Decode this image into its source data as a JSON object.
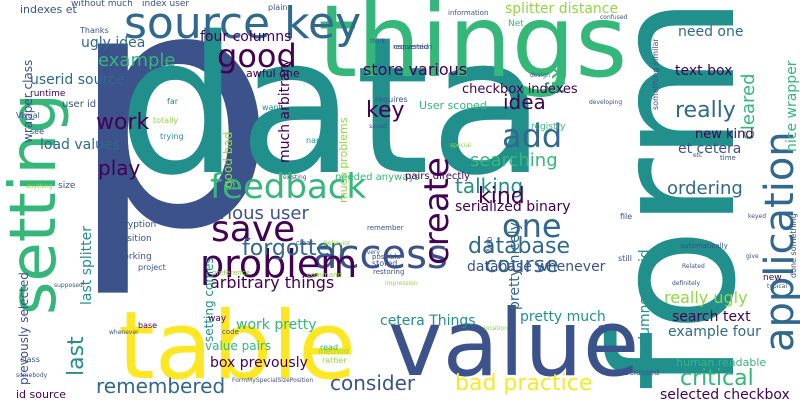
{
  "palette": {
    "purple": "#440154",
    "indigo": "#3b528b",
    "blue": "#31688e",
    "teal": "#21908c",
    "green": "#35b779",
    "lime": "#90d743",
    "yellow": "#fde725"
  },
  "words": [
    {
      "text": "p",
      "color": "#3b528b"
    },
    {
      "text": "data",
      "color": "#21908c"
    },
    {
      "text": "form",
      "color": "#21908c"
    },
    {
      "text": "things",
      "color": "#35b779"
    },
    {
      "text": "table",
      "color": "#fde725"
    },
    {
      "text": "value",
      "color": "#3b528b"
    },
    {
      "text": "setting",
      "color": "#35b779"
    },
    {
      "text": "source key",
      "color": "#31688e"
    },
    {
      "text": "access",
      "color": "#3b528b"
    },
    {
      "text": "application",
      "color": "#31688e"
    },
    {
      "text": "problem",
      "color": "#440154"
    },
    {
      "text": "save",
      "color": "#440154"
    },
    {
      "text": "feedback",
      "color": "#35b779"
    },
    {
      "text": "create",
      "color": "#440154"
    },
    {
      "text": "one",
      "color": "#31688e"
    },
    {
      "text": "good",
      "color": "#440154"
    },
    {
      "text": "add",
      "color": "#31688e"
    },
    {
      "text": "database",
      "color": "#31688e"
    },
    {
      "text": "forgotten",
      "color": "#31688e"
    },
    {
      "text": "last",
      "color": "#21908c"
    },
    {
      "text": "course",
      "color": "#31688e"
    },
    {
      "text": "consider",
      "color": "#3b528b"
    },
    {
      "text": "remembered",
      "color": "#31688e"
    },
    {
      "text": "bad practice",
      "color": "#fde725"
    },
    {
      "text": "critical",
      "color": "#35b779"
    },
    {
      "text": "really",
      "color": "#31688e"
    },
    {
      "text": "really ugly",
      "color": "#90d743"
    },
    {
      "text": "example",
      "color": "#35b779"
    },
    {
      "text": "work",
      "color": "#440154"
    },
    {
      "text": "play",
      "color": "#440154"
    },
    {
      "text": "key",
      "color": "#440154"
    },
    {
      "text": "idea",
      "color": "#440154"
    },
    {
      "text": "fix",
      "color": "#35b779"
    },
    {
      "text": "talking",
      "color": "#21908c"
    },
    {
      "text": "searching",
      "color": "#35b779"
    },
    {
      "text": "kind",
      "color": "#440154"
    },
    {
      "text": "ordering",
      "color": "#31688e"
    },
    {
      "text": "cleared",
      "color": "#35b779"
    },
    {
      "text": "store various",
      "color": "#440154"
    },
    {
      "text": "various user",
      "color": "#3b528b"
    },
    {
      "text": "arbitrary things",
      "color": "#440154"
    },
    {
      "text": "work pretty",
      "color": "#35b779"
    },
    {
      "text": "new kind",
      "color": "#440154"
    },
    {
      "text": "et cetera",
      "color": "#3b528b"
    },
    {
      "text": "text box",
      "color": "#440154"
    },
    {
      "text": "need one",
      "color": "#31688e"
    },
    {
      "text": "nice wrapper",
      "color": "#35b779"
    },
    {
      "text": "pretty much",
      "color": "#21908c"
    },
    {
      "text": "search text",
      "color": "#440154"
    },
    {
      "text": "example four",
      "color": "#31688e"
    },
    {
      "text": "selected checkbox",
      "color": "#440154"
    },
    {
      "text": "splitter distance",
      "color": "#90d743"
    },
    {
      "text": "four columns",
      "color": "#440154"
    },
    {
      "text": "ugly idea",
      "color": "#31688e"
    },
    {
      "text": "userid source",
      "color": "#31688e"
    },
    {
      "text": "load values",
      "color": "#31688e"
    },
    {
      "text": "checkbox indexes",
      "color": "#440154"
    },
    {
      "text": "serialized binary",
      "color": "#440154"
    },
    {
      "text": "pretty nicely",
      "color": "#31688e"
    },
    {
      "text": "database whenever",
      "color": "#3b528b"
    },
    {
      "text": "cetera Things",
      "color": "#21908c"
    },
    {
      "text": "box prevously",
      "color": "#440154"
    },
    {
      "text": "value pairs",
      "color": "#35b779"
    },
    {
      "text": "last splitter",
      "color": "#21908c"
    },
    {
      "text": "prevously selected",
      "color": "#3b528b"
    },
    {
      "text": "good bad",
      "color": "#90d743"
    },
    {
      "text": "much arbitrary",
      "color": "#440154"
    },
    {
      "text": "setting comes",
      "color": "#21908c"
    },
    {
      "text": "columns userid",
      "color": "#21908c"
    },
    {
      "text": "much problems",
      "color": "#90d743"
    },
    {
      "text": "wrapper class",
      "color": "#3b528b"
    },
    {
      "text": "id source",
      "color": "#440154"
    },
    {
      "text": "indexes et",
      "color": "#3b528b"
    },
    {
      "text": "without much",
      "color": "#3b528b"
    },
    {
      "text": "index user",
      "color": "#3b528b"
    },
    {
      "text": "awful one",
      "color": "#440154"
    },
    {
      "text": "User scoped",
      "color": "#35b779"
    },
    {
      "text": "needed anyways",
      "color": "#35b779"
    },
    {
      "text": "pairs directly",
      "color": "#440154"
    },
    {
      "text": "human readable",
      "color": "#35b779"
    },
    {
      "text": "user id",
      "color": "#3b528b"
    },
    {
      "text": "runtime",
      "color": "#440154"
    },
    {
      "text": "size",
      "color": "#3b528b"
    },
    {
      "text": "encryption",
      "color": "#3b528b"
    },
    {
      "text": "position",
      "color": "#3b528b"
    },
    {
      "text": "working",
      "color": "#3b528b"
    },
    {
      "text": "project",
      "color": "#3b528b"
    },
    {
      "text": "plain",
      "color": "#3b528b"
    },
    {
      "text": "Thanks",
      "color": "#3b528b"
    },
    {
      "text": "Net",
      "color": "#35b779"
    },
    {
      "text": "registry",
      "color": "#35b779"
    },
    {
      "text": "requires",
      "color": "#3b528b"
    },
    {
      "text": "want",
      "color": "#21908c"
    },
    {
      "text": "far",
      "color": "#21908c"
    },
    {
      "text": "totally",
      "color": "#90d743"
    },
    {
      "text": "trying",
      "color": "#21908c"
    },
    {
      "text": "name",
      "color": "#21908c"
    },
    {
      "text": "way",
      "color": "#440154"
    },
    {
      "text": "base",
      "color": "#440154"
    },
    {
      "text": "stored",
      "color": "#3b528b"
    },
    {
      "text": "restoring",
      "color": "#3b528b"
    },
    {
      "text": "possible",
      "color": "#3b528b"
    },
    {
      "text": "remember",
      "color": "#3b528b"
    },
    {
      "text": "Config",
      "color": "#3b528b"
    },
    {
      "text": "automatically",
      "color": "#3b528b"
    },
    {
      "text": "read",
      "color": "#35b779"
    },
    {
      "text": "method",
      "color": "#90d743"
    },
    {
      "text": "rather",
      "color": "#90d743"
    },
    {
      "text": "subclassed",
      "color": "#3b528b"
    },
    {
      "text": "new",
      "color": "#440154"
    },
    {
      "text": "still",
      "color": "#3b528b"
    },
    {
      "text": "file",
      "color": "#3b528b"
    },
    {
      "text": "see",
      "color": "#3b528b"
    },
    {
      "text": "Visual",
      "color": "#3b528b"
    },
    {
      "text": "class",
      "color": "#3b528b"
    },
    {
      "text": "something similar",
      "color": "#3b528b"
    },
    {
      "text": "done something",
      "color": "#3b528b"
    },
    {
      "text": "information",
      "color": "#3b528b"
    },
    {
      "text": "conversion",
      "color": "#3b528b"
    },
    {
      "text": "requested",
      "color": "#3b528b"
    },
    {
      "text": "design",
      "color": "#3b528b"
    },
    {
      "text": "developing",
      "color": "#3b528b"
    },
    {
      "text": "FormMySpecialSizePosition",
      "color": "#3b528b"
    },
    {
      "text": "preference",
      "color": "#90d743"
    },
    {
      "text": "command",
      "color": "#90d743"
    },
    {
      "text": "behavior",
      "color": "#90d743"
    },
    {
      "text": "existing",
      "color": "#3b528b"
    },
    {
      "text": "special",
      "color": "#90d743"
    },
    {
      "text": "confused",
      "color": "#3b528b"
    },
    {
      "text": "think",
      "color": "#3b528b"
    },
    {
      "text": "saved",
      "color": "#3b528b"
    },
    {
      "text": "keyed",
      "color": "#3b528b"
    },
    {
      "text": "time",
      "color": "#3b528b"
    },
    {
      "text": "etc",
      "color": "#3b528b"
    },
    {
      "text": "clear",
      "color": "#3b528b"
    },
    {
      "text": "code",
      "color": "#3b528b"
    },
    {
      "text": "whenever",
      "color": "#3b528b"
    },
    {
      "text": "supposed",
      "color": "#3b528b"
    },
    {
      "text": "anything",
      "color": "#90d743"
    },
    {
      "text": "somebody",
      "color": "#3b528b"
    },
    {
      "text": "location",
      "color": "#90d743"
    },
    {
      "text": "typical",
      "color": "#3b528b"
    },
    {
      "text": "give",
      "color": "#3b528b"
    },
    {
      "text": "Related",
      "color": "#3b528b"
    },
    {
      "text": "definitely",
      "color": "#3b528b"
    },
    {
      "text": "impression",
      "color": "#90d743"
    },
    {
      "text": "Web",
      "color": "#3b528b"
    },
    {
      "text": "every",
      "color": "#3b528b"
    }
  ]
}
